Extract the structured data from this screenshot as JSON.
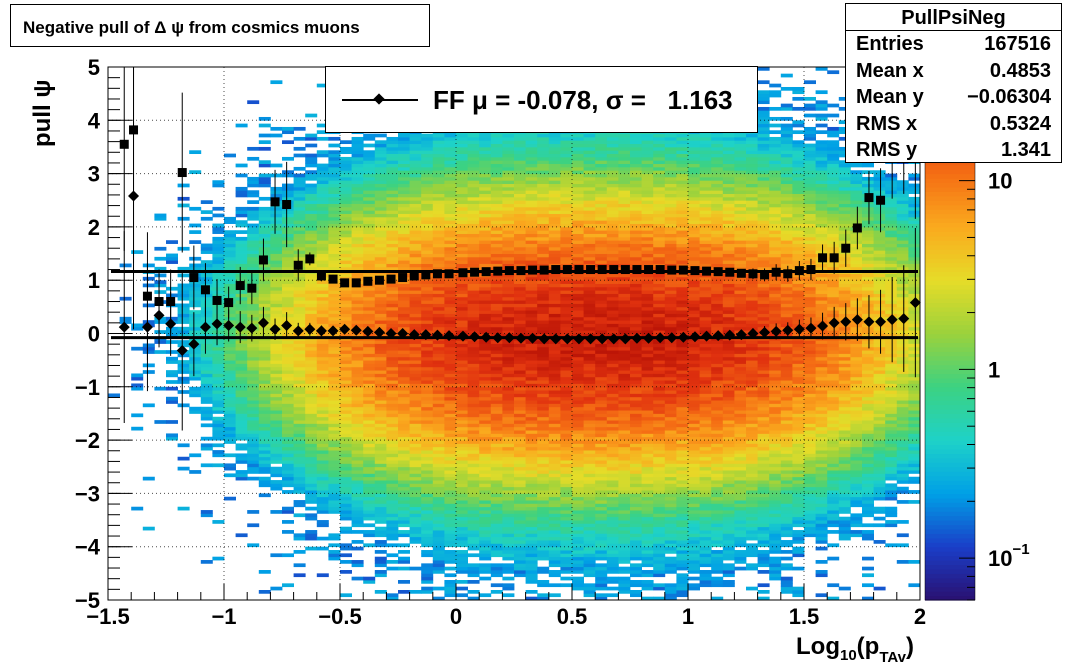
{
  "title": "Negative pull of Δ ψ from cosmics muons",
  "stats": {
    "name": "PullPsiNeg",
    "rows": [
      {
        "label": "Entries",
        "value": "167516"
      },
      {
        "label": "Mean x",
        "value": "0.4853"
      },
      {
        "label": "Mean y",
        "value": "−0.06304"
      },
      {
        "label": "RMS x",
        "value": "0.5324"
      },
      {
        "label": "RMS y",
        "value": "1.341"
      }
    ]
  },
  "legend": {
    "text": "FF μ = -0.078, σ =   1.163"
  },
  "chart_data": {
    "type": "heatmap",
    "title": "Negative pull of Δ ψ from cosmics muons",
    "xlabel": "Log10(pTAv)",
    "ylabel": "pull ψ",
    "xlim": [
      -1.5,
      2.0
    ],
    "ylim": [
      -5,
      5
    ],
    "x_ticks": [
      -1.5,
      -1,
      -0.5,
      0,
      0.5,
      1,
      1.5,
      2
    ],
    "x_tick_labels": [
      "−1.5",
      "−1",
      "−0.5",
      "0",
      "0.5",
      "1",
      "1.5",
      "2"
    ],
    "y_ticks": [
      -5,
      -4,
      -3,
      -2,
      -1,
      0,
      1,
      2,
      3,
      4,
      5
    ],
    "y_tick_labels": [
      "−5",
      "−4",
      "−3",
      "−2",
      "−1",
      "0",
      "1",
      "2",
      "3",
      "4",
      "5"
    ],
    "grid": true,
    "log_z": true,
    "z_ticks": [
      {
        "value": 0.1,
        "base": "10",
        "exp": "−1"
      },
      {
        "value": 1,
        "base": "1",
        "exp": ""
      },
      {
        "value": 10,
        "base": "10",
        "exp": ""
      }
    ],
    "colormap": [
      "#2a1070",
      "#1a3ec8",
      "#00a0e6",
      "#1ed2c8",
      "#3cd282",
      "#9bd23c",
      "#e6dc28",
      "#faaa1e",
      "#f56e14",
      "#e1320f",
      "#b40f05"
    ],
    "density_summary": {
      "x_center": 0.6,
      "x_width": 0.75,
      "y_center": -0.06,
      "y_width": 1.16,
      "peak": 30
    },
    "fit_lines": [
      {
        "name": "mean",
        "x": [
          -1.5,
          2.0
        ],
        "y": [
          -0.078,
          -0.078
        ]
      },
      {
        "name": "sigma",
        "x": [
          -1.5,
          2.0
        ],
        "y": [
          1.163,
          1.163
        ]
      }
    ],
    "series": [
      {
        "name": "mean",
        "marker": "diamond",
        "x": [
          -1.43,
          -1.39,
          -1.33,
          -1.28,
          -1.23,
          -1.18,
          -1.13,
          -1.08,
          -1.03,
          -0.98,
          -0.93,
          -0.88,
          -0.83,
          -0.78,
          -0.73,
          -0.68,
          -0.63,
          -0.58,
          -0.53,
          -0.48,
          -0.43,
          -0.38,
          -0.33,
          -0.28,
          -0.23,
          -0.18,
          -0.13,
          -0.08,
          -0.03,
          0.03,
          0.08,
          0.13,
          0.18,
          0.23,
          0.28,
          0.33,
          0.38,
          0.43,
          0.48,
          0.53,
          0.58,
          0.63,
          0.68,
          0.73,
          0.78,
          0.83,
          0.88,
          0.93,
          0.98,
          1.03,
          1.08,
          1.13,
          1.18,
          1.23,
          1.28,
          1.33,
          1.38,
          1.43,
          1.48,
          1.53,
          1.58,
          1.63,
          1.68,
          1.73,
          1.78,
          1.83,
          1.88,
          1.93,
          1.98
        ],
        "y": [
          0.12,
          2.58,
          0.12,
          0.34,
          0.18,
          -0.32,
          -0.2,
          0.12,
          0.18,
          0.15,
          0.12,
          0.1,
          0.2,
          0.08,
          0.15,
          0.05,
          0.08,
          0.05,
          0.05,
          0.08,
          0.06,
          0.04,
          0.02,
          0.0,
          0.0,
          -0.02,
          -0.02,
          -0.03,
          -0.04,
          -0.05,
          -0.06,
          -0.07,
          -0.08,
          -0.08,
          -0.09,
          -0.09,
          -0.1,
          -0.1,
          -0.1,
          -0.1,
          -0.1,
          -0.1,
          -0.1,
          -0.1,
          -0.09,
          -0.09,
          -0.08,
          -0.08,
          -0.07,
          -0.06,
          -0.05,
          -0.04,
          -0.03,
          -0.02,
          0.0,
          0.02,
          0.04,
          0.06,
          0.08,
          0.1,
          0.14,
          0.2,
          0.22,
          0.26,
          0.22,
          0.22,
          0.26,
          0.28,
          0.58
        ],
        "err": [
          1.8,
          2.5,
          1.2,
          0.6,
          0.6,
          1.5,
          0.6,
          0.5,
          0.4,
          0.3,
          0.3,
          0.25,
          0.3,
          0.2,
          0.25,
          0.15,
          0.12,
          0.1,
          0.08,
          0.06,
          0.05,
          0.04,
          0.03,
          0.03,
          0.02,
          0.02,
          0.02,
          0.02,
          0.02,
          0.02,
          0.02,
          0.02,
          0.02,
          0.02,
          0.02,
          0.02,
          0.02,
          0.02,
          0.02,
          0.02,
          0.02,
          0.02,
          0.02,
          0.02,
          0.02,
          0.02,
          0.02,
          0.03,
          0.03,
          0.03,
          0.04,
          0.05,
          0.06,
          0.08,
          0.1,
          0.12,
          0.15,
          0.15,
          0.18,
          0.2,
          0.25,
          0.3,
          0.35,
          0.4,
          0.5,
          0.6,
          0.8,
          1.0,
          1.4
        ]
      },
      {
        "name": "sigma",
        "marker": "square",
        "x": [
          -1.43,
          -1.39,
          -1.33,
          -1.28,
          -1.23,
          -1.18,
          -1.13,
          -1.08,
          -1.03,
          -0.98,
          -0.93,
          -0.88,
          -0.83,
          -0.78,
          -0.73,
          -0.68,
          -0.63,
          -0.58,
          -0.53,
          -0.48,
          -0.43,
          -0.38,
          -0.33,
          -0.28,
          -0.23,
          -0.18,
          -0.13,
          -0.08,
          -0.03,
          0.03,
          0.08,
          0.13,
          0.18,
          0.23,
          0.28,
          0.33,
          0.38,
          0.43,
          0.48,
          0.53,
          0.58,
          0.63,
          0.68,
          0.73,
          0.78,
          0.83,
          0.88,
          0.93,
          0.98,
          1.03,
          1.08,
          1.13,
          1.18,
          1.23,
          1.28,
          1.33,
          1.38,
          1.43,
          1.48,
          1.53,
          1.58,
          1.63,
          1.68,
          1.73,
          1.78,
          1.83,
          1.88,
          1.93,
          1.98
        ],
        "y": [
          3.55,
          3.82,
          0.7,
          0.6,
          0.6,
          3.02,
          1.05,
          0.82,
          0.62,
          0.58,
          0.9,
          0.85,
          1.38,
          2.47,
          2.42,
          1.28,
          1.4,
          1.08,
          1.02,
          0.95,
          0.95,
          0.98,
          1.0,
          1.02,
          1.05,
          1.08,
          1.1,
          1.12,
          1.12,
          1.14,
          1.15,
          1.16,
          1.17,
          1.18,
          1.18,
          1.19,
          1.19,
          1.2,
          1.2,
          1.2,
          1.2,
          1.2,
          1.2,
          1.2,
          1.2,
          1.2,
          1.2,
          1.19,
          1.19,
          1.18,
          1.17,
          1.16,
          1.15,
          1.13,
          1.12,
          1.1,
          1.15,
          1.12,
          1.18,
          1.2,
          1.42,
          1.42,
          1.6,
          1.98,
          2.55,
          2.5,
          3.33,
          3.62,
          3.55
        ],
        "err": [
          2.0,
          2.5,
          1.2,
          0.6,
          0.6,
          1.5,
          0.6,
          0.5,
          0.4,
          0.3,
          0.35,
          0.3,
          0.4,
          0.6,
          0.8,
          0.3,
          0.12,
          0.1,
          0.08,
          0.06,
          0.05,
          0.04,
          0.03,
          0.03,
          0.02,
          0.02,
          0.02,
          0.02,
          0.02,
          0.02,
          0.02,
          0.02,
          0.02,
          0.02,
          0.02,
          0.02,
          0.02,
          0.02,
          0.02,
          0.02,
          0.02,
          0.02,
          0.02,
          0.02,
          0.02,
          0.02,
          0.02,
          0.03,
          0.03,
          0.03,
          0.04,
          0.05,
          0.06,
          0.08,
          0.1,
          0.12,
          0.15,
          0.15,
          0.18,
          0.2,
          0.25,
          0.3,
          0.35,
          0.4,
          0.5,
          0.6,
          0.8,
          1.0,
          1.4
        ]
      }
    ]
  }
}
